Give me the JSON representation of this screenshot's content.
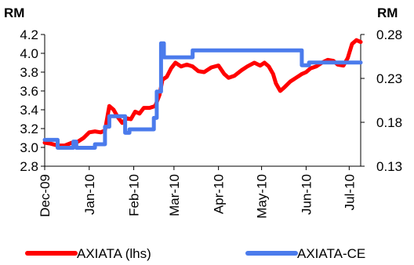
{
  "chart_data": {
    "type": "line",
    "left_axis": {
      "title": "RM",
      "ticks": [
        "4.2",
        "4.0",
        "3.8",
        "3.6",
        "3.4",
        "3.2",
        "3.0",
        "2.8"
      ],
      "ylim": [
        2.8,
        4.2
      ]
    },
    "right_axis": {
      "title": "RM",
      "ticks": [
        "0.28",
        "0.23",
        "0.18",
        "0.13"
      ],
      "ylim": [
        0.13,
        0.28
      ]
    },
    "x_tick_labels": [
      "Dec-09",
      "Jan-10",
      "Feb-10",
      "Mar-10",
      "Apr-10",
      "May-10",
      "Jun-10",
      "Jul-10"
    ],
    "x_range": [
      "2009-12-01",
      "2010-07-09"
    ],
    "series": [
      {
        "name": "AXIATA (lhs)",
        "axis": "left",
        "color": "#ff0000",
        "points": [
          [
            "2009-12-01",
            3.05
          ],
          [
            "2009-12-05",
            3.04
          ],
          [
            "2009-12-10",
            3.02
          ],
          [
            "2009-12-15",
            3.02
          ],
          [
            "2009-12-20",
            3.05
          ],
          [
            "2009-12-24",
            3.06
          ],
          [
            "2009-12-28",
            3.1
          ],
          [
            "2010-01-01",
            3.16
          ],
          [
            "2010-01-05",
            3.17
          ],
          [
            "2010-01-09",
            3.16
          ],
          [
            "2010-01-12",
            3.18
          ],
          [
            "2010-01-15",
            3.44
          ],
          [
            "2010-01-18",
            3.4
          ],
          [
            "2010-01-21",
            3.32
          ],
          [
            "2010-01-24",
            3.26
          ],
          [
            "2010-01-27",
            3.31
          ],
          [
            "2010-01-30",
            3.3
          ],
          [
            "2010-02-02",
            3.38
          ],
          [
            "2010-02-05",
            3.36
          ],
          [
            "2010-02-08",
            3.42
          ],
          [
            "2010-02-12",
            3.42
          ],
          [
            "2010-02-16",
            3.44
          ],
          [
            "2010-02-19",
            3.56
          ],
          [
            "2010-02-21",
            3.72
          ],
          [
            "2010-02-24",
            3.75
          ],
          [
            "2010-02-27",
            3.84
          ],
          [
            "2010-03-02",
            3.9
          ],
          [
            "2010-03-06",
            3.86
          ],
          [
            "2010-03-10",
            3.88
          ],
          [
            "2010-03-14",
            3.86
          ],
          [
            "2010-03-18",
            3.81
          ],
          [
            "2010-03-22",
            3.8
          ],
          [
            "2010-03-27",
            3.85
          ],
          [
            "2010-04-01",
            3.87
          ],
          [
            "2010-04-05",
            3.78
          ],
          [
            "2010-04-08",
            3.74
          ],
          [
            "2010-04-12",
            3.76
          ],
          [
            "2010-04-17",
            3.82
          ],
          [
            "2010-04-21",
            3.86
          ],
          [
            "2010-04-26",
            3.9
          ],
          [
            "2010-04-30",
            3.87
          ],
          [
            "2010-05-03",
            3.9
          ],
          [
            "2010-05-06",
            3.86
          ],
          [
            "2010-05-09",
            3.78
          ],
          [
            "2010-05-11",
            3.68
          ],
          [
            "2010-05-14",
            3.6
          ],
          [
            "2010-05-17",
            3.64
          ],
          [
            "2010-05-21",
            3.7
          ],
          [
            "2010-05-25",
            3.74
          ],
          [
            "2010-05-29",
            3.78
          ],
          [
            "2010-06-01",
            3.8
          ],
          [
            "2010-06-04",
            3.84
          ],
          [
            "2010-06-08",
            3.86
          ],
          [
            "2010-06-12",
            3.9
          ],
          [
            "2010-06-16",
            3.93
          ],
          [
            "2010-06-20",
            3.92
          ],
          [
            "2010-06-23",
            3.88
          ],
          [
            "2010-06-27",
            3.87
          ],
          [
            "2010-06-30",
            3.95
          ],
          [
            "2010-07-03",
            4.1
          ],
          [
            "2010-07-06",
            4.14
          ],
          [
            "2010-07-09",
            4.12
          ]
        ]
      },
      {
        "name": "AXIATA-CE",
        "axis": "right",
        "color": "#4b7bec",
        "points": [
          [
            "2009-12-01",
            0.16
          ],
          [
            "2009-12-10",
            0.16
          ],
          [
            "2009-12-10",
            0.151
          ],
          [
            "2009-12-21",
            0.151
          ],
          [
            "2009-12-21",
            0.158
          ],
          [
            "2009-12-23",
            0.158
          ],
          [
            "2009-12-23",
            0.151
          ],
          [
            "2010-01-05",
            0.151
          ],
          [
            "2010-01-05",
            0.155
          ],
          [
            "2010-01-12",
            0.155
          ],
          [
            "2010-01-12",
            0.175
          ],
          [
            "2010-01-15",
            0.175
          ],
          [
            "2010-01-15",
            0.187
          ],
          [
            "2010-01-26",
            0.187
          ],
          [
            "2010-01-26",
            0.168
          ],
          [
            "2010-01-29",
            0.168
          ],
          [
            "2010-01-29",
            0.172
          ],
          [
            "2010-02-15",
            0.172
          ],
          [
            "2010-02-15",
            0.185
          ],
          [
            "2010-02-17",
            0.185
          ],
          [
            "2010-02-17",
            0.215
          ],
          [
            "2010-02-20",
            0.215
          ],
          [
            "2010-02-20",
            0.27
          ],
          [
            "2010-02-22",
            0.27
          ],
          [
            "2010-02-22",
            0.254
          ],
          [
            "2010-03-14",
            0.254
          ],
          [
            "2010-03-14",
            0.262
          ],
          [
            "2010-05-29",
            0.262
          ],
          [
            "2010-05-29",
            0.245
          ],
          [
            "2010-06-03",
            0.245
          ],
          [
            "2010-06-03",
            0.248
          ],
          [
            "2010-07-09",
            0.248
          ]
        ]
      }
    ],
    "legend": {
      "position": "bottom",
      "entries": [
        {
          "label": "AXIATA (lhs)",
          "color": "#ff0000"
        },
        {
          "label": "AXIATA-CE",
          "color": "#4b7bec"
        }
      ]
    }
  }
}
